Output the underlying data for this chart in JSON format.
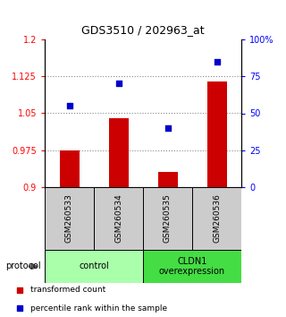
{
  "title": "GDS3510 / 202963_at",
  "samples": [
    "GSM260533",
    "GSM260534",
    "GSM260535",
    "GSM260536"
  ],
  "red_values": [
    0.975,
    1.04,
    0.93,
    1.115
  ],
  "blue_values": [
    55,
    70,
    40,
    85
  ],
  "ylim_left": [
    0.9,
    1.2
  ],
  "ylim_right": [
    0,
    100
  ],
  "yticks_left": [
    0.9,
    0.975,
    1.05,
    1.125,
    1.2
  ],
  "ytick_labels_left": [
    "0.9",
    "0.975",
    "1.05",
    "1.125",
    "1.2"
  ],
  "yticks_right": [
    0,
    25,
    50,
    75,
    100
  ],
  "ytick_labels_right": [
    "0",
    "25",
    "50",
    "75",
    "100%"
  ],
  "groups": [
    {
      "label": "control",
      "samples": [
        0,
        1
      ],
      "color": "#aaffaa"
    },
    {
      "label": "CLDN1\noverexpression",
      "samples": [
        2,
        3
      ],
      "color": "#44dd44"
    }
  ],
  "protocol_label": "protocol",
  "legend": [
    {
      "color": "#cc0000",
      "label": "transformed count"
    },
    {
      "color": "#0000cc",
      "label": "percentile rank within the sample"
    }
  ],
  "bar_color": "#cc0000",
  "dot_color": "#0000cc",
  "bar_width": 0.4,
  "sample_box_color": "#cccccc",
  "dotted_line_color": "#888888",
  "background_color": "#ffffff"
}
